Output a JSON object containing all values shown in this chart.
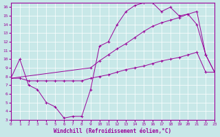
{
  "title": "",
  "xlabel": "Windchill (Refroidissement éolien,°C)",
  "background_color": "#c8e8e8",
  "grid_color": "#ffffff",
  "line_color": "#990099",
  "xlim": [
    0,
    23
  ],
  "ylim": [
    3,
    16.5
  ],
  "xticks": [
    0,
    1,
    2,
    3,
    4,
    5,
    6,
    7,
    8,
    9,
    10,
    11,
    12,
    13,
    14,
    15,
    16,
    17,
    18,
    19,
    20,
    21,
    22,
    23
  ],
  "yticks": [
    3,
    4,
    5,
    6,
    7,
    8,
    9,
    10,
    11,
    12,
    13,
    14,
    15,
    16
  ],
  "line1_x": [
    0,
    1,
    2,
    3,
    4,
    5,
    6,
    7,
    8,
    9,
    10,
    11,
    12,
    13,
    14,
    15,
    16,
    17,
    18,
    19,
    20,
    21,
    22,
    23
  ],
  "line1_y": [
    7.8,
    10.0,
    7.0,
    6.5,
    5.0,
    4.5,
    3.2,
    3.4,
    3.4,
    6.5,
    11.5,
    12.0,
    14.0,
    15.5,
    16.2,
    16.5,
    16.5,
    15.5,
    16.0,
    15.0,
    15.2,
    14.0,
    10.5,
    8.5
  ],
  "line2_x": [
    0,
    9,
    10,
    11,
    12,
    13,
    14,
    15,
    16,
    17,
    18,
    19,
    20,
    21,
    22,
    23
  ],
  "line2_y": [
    7.8,
    9.0,
    9.8,
    10.5,
    11.2,
    11.8,
    12.5,
    13.2,
    13.8,
    14.2,
    14.5,
    14.8,
    15.2,
    15.5,
    10.5,
    8.5
  ],
  "line3_x": [
    0,
    1,
    2,
    3,
    4,
    5,
    6,
    7,
    8,
    9,
    10,
    11,
    12,
    13,
    14,
    15,
    16,
    17,
    18,
    19,
    20,
    21,
    22,
    23
  ],
  "line3_y": [
    7.8,
    7.8,
    7.5,
    7.5,
    7.5,
    7.5,
    7.5,
    7.5,
    7.5,
    7.8,
    8.0,
    8.2,
    8.5,
    8.8,
    9.0,
    9.2,
    9.5,
    9.8,
    10.0,
    10.2,
    10.5,
    10.8,
    8.5,
    8.5
  ]
}
